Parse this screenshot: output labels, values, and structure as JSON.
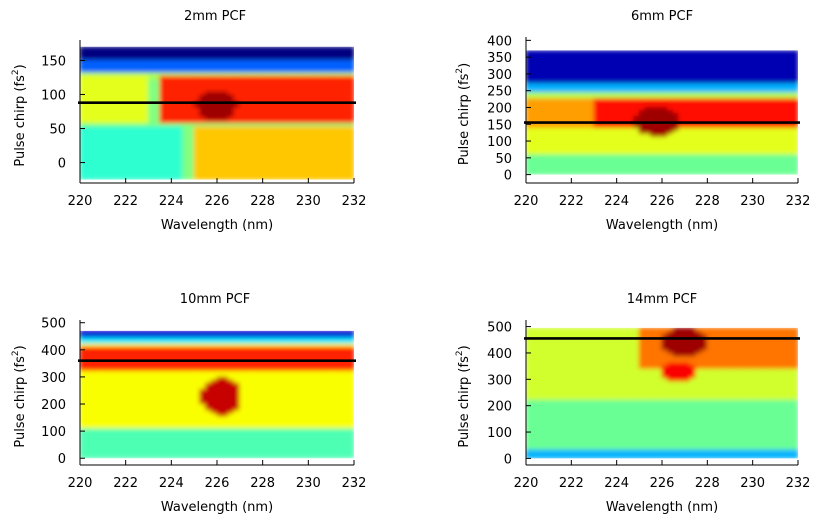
{
  "chart_data": [
    {
      "type": "heatmap",
      "title": "2mm PCF",
      "xlabel": "Wavelength (nm)",
      "ylabel": "Pulse chirp (fs²)",
      "x_ticks": [
        "220",
        "222",
        "224",
        "226",
        "228",
        "230",
        "232"
      ],
      "y_ticks": [
        "0",
        "50",
        "100",
        "150"
      ],
      "xlim": [
        220,
        232
      ],
      "ylim": [
        -30,
        180
      ],
      "data_y_range": [
        -25,
        170
      ],
      "reference_line_y": 88,
      "grid": false,
      "colorscale": "jet (blue-green-yellow-red)",
      "field": {
        "background": 0.5,
        "features": [
          {
            "shape": "band",
            "y_from": 150,
            "y_to": 170,
            "value": 0.0
          },
          {
            "shape": "band",
            "y_from": 135,
            "y_to": 150,
            "value": 0.22
          },
          {
            "shape": "band",
            "y_from": 125,
            "y_to": 135,
            "value": 0.55
          },
          {
            "shape": "region",
            "x": [
              223.5,
              232
            ],
            "y": [
              60,
              130
            ],
            "value": 0.84
          },
          {
            "shape": "region",
            "x": [
              220,
              223
            ],
            "y": [
              60,
              130
            ],
            "value": 0.6
          },
          {
            "shape": "blob",
            "x": 226,
            "y": 85,
            "rx": 0.9,
            "ry": 22,
            "value": 0.97
          },
          {
            "shape": "region",
            "x": [
              220,
              224.5
            ],
            "y": [
              -25,
              55
            ],
            "value": 0.42
          },
          {
            "shape": "region",
            "x": [
              225,
              232
            ],
            "y": [
              -25,
              55
            ],
            "value": 0.68
          }
        ]
      }
    },
    {
      "type": "heatmap",
      "title": "6mm PCF",
      "xlabel": "Wavelength (nm)",
      "ylabel": "Pulse chirp (fs²)",
      "x_ticks": [
        "220",
        "222",
        "224",
        "226",
        "228",
        "230",
        "232"
      ],
      "y_ticks": [
        "0",
        "50",
        "100",
        "150",
        "200",
        "250",
        "300",
        "350",
        "400"
      ],
      "xlim": [
        220,
        232
      ],
      "ylim": [
        -25,
        410
      ],
      "data_y_range": [
        0,
        370
      ],
      "reference_line_y": 155,
      "grid": false,
      "colorscale": "jet (blue-green-yellow-red)",
      "field": {
        "background": 0.6,
        "features": [
          {
            "shape": "band",
            "y_from": 270,
            "y_to": 370,
            "value": 0.05
          },
          {
            "shape": "band",
            "y_from": 245,
            "y_to": 270,
            "value": 0.3
          },
          {
            "shape": "band",
            "y_from": 230,
            "y_to": 245,
            "value": 0.55
          },
          {
            "shape": "region",
            "x": [
              223,
              232
            ],
            "y": [
              140,
              230
            ],
            "value": 0.86
          },
          {
            "shape": "region",
            "x": [
              220,
              223
            ],
            "y": [
              140,
              230
            ],
            "value": 0.72
          },
          {
            "shape": "blob",
            "x": 225.8,
            "y": 160,
            "rx": 1.0,
            "ry": 45,
            "value": 0.97
          },
          {
            "shape": "region",
            "x": [
              220,
              232
            ],
            "y": [
              0,
              60
            ],
            "value": 0.48
          }
        ]
      }
    },
    {
      "type": "heatmap",
      "title": "10mm PCF",
      "xlabel": "Wavelength (nm)",
      "ylabel": "Pulse chirp (fs²)",
      "x_ticks": [
        "220",
        "222",
        "224",
        "226",
        "228",
        "230",
        "232"
      ],
      "y_ticks": [
        "0",
        "100",
        "200",
        "300",
        "400",
        "500"
      ],
      "xlim": [
        220,
        232
      ],
      "ylim": [
        -25,
        510
      ],
      "data_y_range": [
        0,
        470
      ],
      "reference_line_y": 360,
      "grid": false,
      "colorscale": "jet (blue-green-yellow-red)",
      "field": {
        "background": 0.62,
        "features": [
          {
            "shape": "band",
            "y_from": 445,
            "y_to": 470,
            "value": 0.08
          },
          {
            "shape": "band",
            "y_from": 420,
            "y_to": 445,
            "value": 0.35
          },
          {
            "shape": "region",
            "x": [
              220,
              232
            ],
            "y": [
              330,
              410
            ],
            "value": 0.84
          },
          {
            "shape": "blob",
            "x": 226.2,
            "y": 230,
            "rx": 0.9,
            "ry": 70,
            "value": 0.93
          },
          {
            "shape": "region",
            "x": [
              220,
              232
            ],
            "y": [
              0,
              110
            ],
            "value": 0.45
          }
        ]
      }
    },
    {
      "type": "heatmap",
      "title": "14mm PCF",
      "xlabel": "Wavelength (nm)",
      "ylabel": "Pulse chirp (fs²)",
      "x_ticks": [
        "220",
        "222",
        "224",
        "226",
        "228",
        "230",
        "232"
      ],
      "y_ticks": [
        "0",
        "100",
        "200",
        "300",
        "400",
        "500"
      ],
      "xlim": [
        220,
        232
      ],
      "ylim": [
        -25,
        525
      ],
      "data_y_range": [
        0,
        495
      ],
      "reference_line_y": 455,
      "grid": false,
      "colorscale": "jet (blue-green-yellow-red)",
      "field": {
        "background": 0.58,
        "features": [
          {
            "shape": "band",
            "y_from": 0,
            "y_to": 30,
            "value": 0.3
          },
          {
            "shape": "region",
            "x": [
              220,
              232
            ],
            "y": [
              30,
              220
            ],
            "value": 0.48
          },
          {
            "shape": "region",
            "x": [
              225,
              232
            ],
            "y": [
              340,
              495
            ],
            "value": 0.76
          },
          {
            "shape": "blob",
            "x": 227,
            "y": 440,
            "rx": 1.0,
            "ry": 55,
            "value": 0.97
          },
          {
            "shape": "blob",
            "x": 226.8,
            "y": 330,
            "rx": 0.8,
            "ry": 40,
            "value": 0.88
          }
        ]
      }
    }
  ]
}
